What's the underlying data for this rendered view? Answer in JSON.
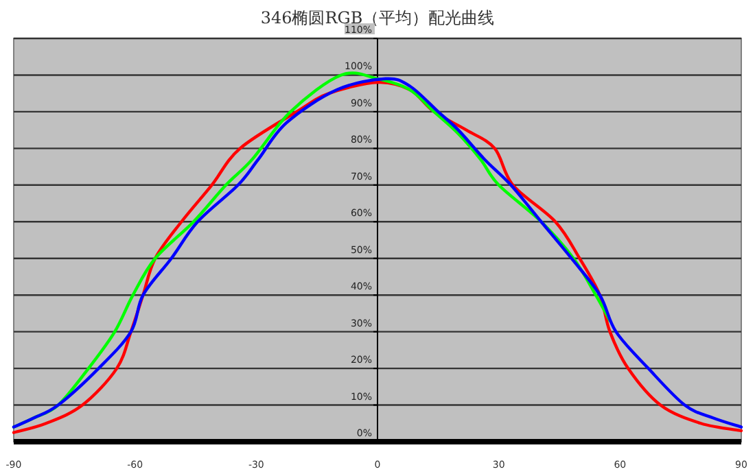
{
  "chart_data": {
    "type": "line",
    "title": "346椭圆RGB（平均）配光曲线",
    "xlim": [
      -90,
      90
    ],
    "xticks": [
      -90,
      -60,
      -30,
      0,
      30,
      60,
      90
    ],
    "ylim": [
      0,
      110
    ],
    "yticks": [
      {
        "value": 0,
        "label": "0%"
      },
      {
        "value": 10,
        "label": "10%"
      },
      {
        "value": 20,
        "label": "20%"
      },
      {
        "value": 30,
        "label": "30%"
      },
      {
        "value": 40,
        "label": "40%"
      },
      {
        "value": 50,
        "label": "50%"
      },
      {
        "value": 60,
        "label": "60%"
      },
      {
        "value": 70,
        "label": "70%"
      },
      {
        "value": 80,
        "label": "80%"
      },
      {
        "value": 90,
        "label": "90%"
      },
      {
        "value": 100,
        "label": "100%"
      },
      {
        "value": 110,
        "label": "110%"
      }
    ],
    "grid": "y",
    "marker": "none",
    "line_style": "solid",
    "series": [
      {
        "color": "#ff0000",
        "x": [
          -90,
          -82,
          -73,
          -64.5,
          -61,
          -58,
          -55,
          -48.5,
          -41,
          -34,
          -20,
          -12,
          0,
          8,
          14,
          22,
          29,
          33.5,
          44,
          50,
          55,
          57.5,
          62,
          70,
          80,
          90
        ],
        "values": [
          2.5,
          5,
          10,
          20,
          30,
          40,
          50,
          60,
          70,
          80,
          90,
          95,
          98,
          96,
          90,
          85,
          80,
          70,
          60,
          50,
          40,
          30,
          20,
          10,
          5,
          3
        ]
      },
      {
        "color": "#00ff00",
        "x": [
          -90,
          -85,
          -79,
          -71.5,
          -65,
          -60.5,
          -55,
          -45.5,
          -37.5,
          -31,
          -21.5,
          -9,
          0,
          8,
          14,
          20,
          25.5,
          30,
          40.5,
          48.5,
          54,
          57.5
        ],
        "values": [
          4,
          6.5,
          10,
          20,
          30,
          40,
          50,
          60,
          70,
          77,
          90,
          100,
          99,
          96,
          90,
          84,
          77,
          70,
          60,
          50,
          40,
          33
        ]
      },
      {
        "color": "#0000ff",
        "x": [
          -90,
          -85,
          -79,
          -69,
          -61,
          -58,
          -51,
          -44.5,
          -34.5,
          -29.5,
          -22.5,
          -10,
          2,
          8,
          15,
          20,
          26.5,
          33,
          40.5,
          48,
          55,
          59,
          67,
          76,
          83,
          90
        ],
        "values": [
          4,
          6.5,
          10,
          20,
          30,
          40,
          50,
          60,
          70,
          77,
          87,
          96,
          99,
          97,
          90,
          85,
          77,
          70,
          60,
          50,
          40,
          30,
          20,
          10,
          6.5,
          4
        ]
      }
    ]
  }
}
